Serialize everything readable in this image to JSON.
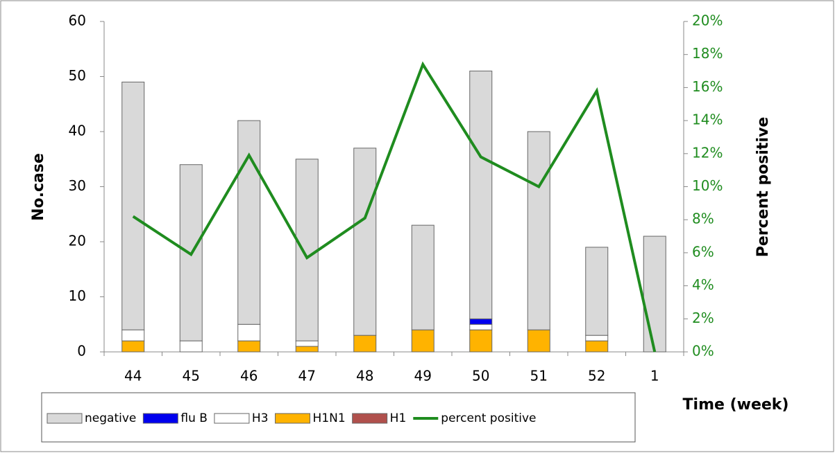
{
  "chart_data": {
    "type": "bar",
    "categories": [
      "44",
      "45",
      "46",
      "47",
      "48",
      "49",
      "50",
      "51",
      "52",
      "1"
    ],
    "x_label": "Time (week)",
    "y_label": "No.case",
    "y2_label": "Percent positive",
    "ylim": [
      0,
      60
    ],
    "yticks": [
      0,
      10,
      20,
      30,
      40,
      50,
      60
    ],
    "y2lim": [
      0,
      20
    ],
    "y2ticks": [
      {
        "value": 0,
        "label": "0%"
      },
      {
        "value": 2,
        "label": "2%"
      },
      {
        "value": 4,
        "label": "4%"
      },
      {
        "value": 6,
        "label": "6%"
      },
      {
        "value": 8,
        "label": "8%"
      },
      {
        "value": 10,
        "label": "10%"
      },
      {
        "value": 12,
        "label": "12%"
      },
      {
        "value": 14,
        "label": "14%"
      },
      {
        "value": 16,
        "label": "16%"
      },
      {
        "value": 18,
        "label": "18%"
      },
      {
        "value": 20,
        "label": "20%"
      }
    ],
    "series": [
      {
        "name": "negative",
        "color": "#d9d9d9",
        "values": [
          45,
          32,
          37,
          33,
          34,
          19,
          45,
          36,
          16,
          21
        ]
      },
      {
        "name": "flu B",
        "color": "#0000ee",
        "values": [
          0,
          0,
          0,
          0,
          0,
          0,
          1,
          0,
          0,
          0
        ]
      },
      {
        "name": "H3",
        "color": "#ffffff",
        "values": [
          2,
          2,
          3,
          1,
          0,
          0,
          1,
          0,
          1,
          0
        ]
      },
      {
        "name": "H1N1",
        "color": "#ffb300",
        "values": [
          2,
          0,
          2,
          1,
          3,
          4,
          4,
          4,
          2,
          0
        ]
      },
      {
        "name": "H1",
        "color": "#b0504c",
        "values": [
          0,
          0,
          0,
          0,
          0,
          0,
          0,
          0,
          0,
          0
        ]
      },
      {
        "name": "percent positive",
        "color": "#1f8c1f",
        "type": "line",
        "axis": "y2",
        "values": [
          8.2,
          5.9,
          11.9,
          5.7,
          8.1,
          17.4,
          11.8,
          10,
          15.8,
          0
        ]
      }
    ]
  }
}
